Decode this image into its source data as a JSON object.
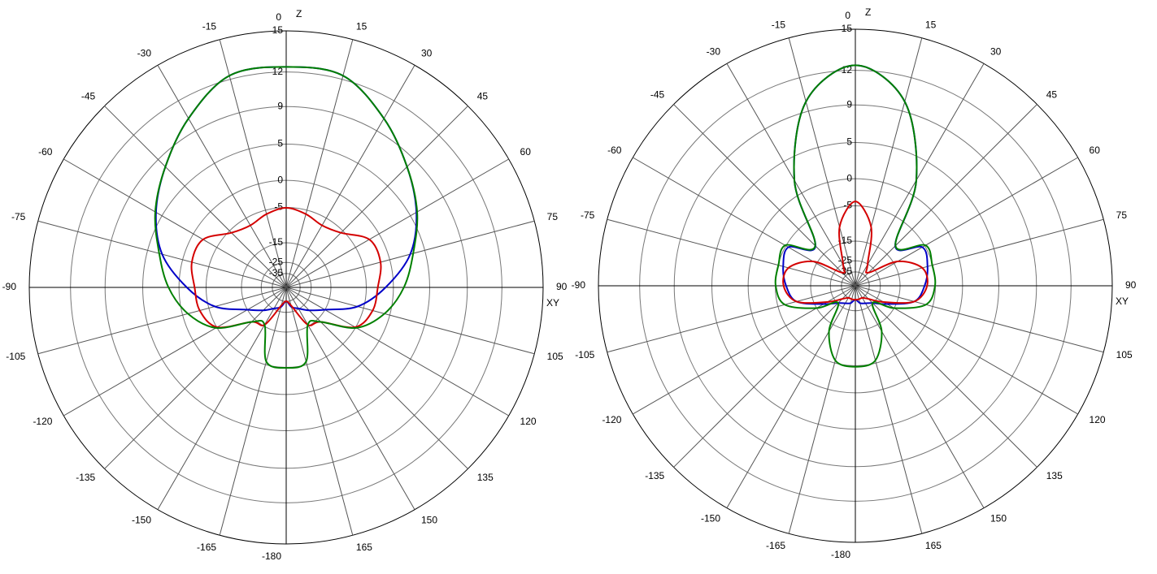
{
  "chart_data": [
    {
      "type": "polar",
      "radial_scale": "arrl",
      "z_label": "Z",
      "xy_label": "XY",
      "theta": [
        0,
        15,
        30,
        45,
        60,
        75,
        90,
        105,
        120,
        135,
        150,
        165,
        180,
        195,
        210,
        225,
        240,
        255,
        270,
        285,
        300,
        315,
        330,
        345
      ],
      "rlim": [
        -35,
        15
      ],
      "rticks": [
        15,
        12,
        9,
        5,
        0,
        -5,
        -15,
        -25,
        -35
      ],
      "thetaticks": [
        0,
        15,
        30,
        45,
        60,
        75,
        90,
        105,
        120,
        135,
        150,
        165,
        -180,
        -165,
        -150,
        -135,
        -120,
        -105,
        -90,
        -75,
        -60,
        -45,
        -30,
        -15
      ],
      "series": [
        {
          "color": "#0000c8",
          "values": [
            12.4,
            12.3,
            10.3,
            8.0,
            5.8,
            3.1,
            -1.3,
            -6.4,
            -15,
            -20.5,
            -25.4,
            -28.6,
            -35,
            -28.6,
            -25.4,
            -20.5,
            -15,
            -6.4,
            -1.3,
            3.1,
            5.8,
            8.0,
            10.3,
            12.3
          ]
        },
        {
          "color": "#d40000",
          "values": [
            -5.1,
            -5.9,
            -6.9,
            -5.6,
            -1.9,
            -1.6,
            -2.7,
            -3.1,
            -5.1,
            -13.5,
            -15.6,
            -30,
            -35,
            -30,
            -15.6,
            -13.5,
            -5.1,
            -3.1,
            -2.7,
            -1.6,
            -1.9,
            -5.6,
            -6.9,
            -5.9
          ]
        },
        {
          "color": "#008000",
          "values": [
            12.4,
            12.3,
            10.3,
            8.0,
            5.9,
            3.5,
            1.6,
            -0.9,
            -4.8,
            -13.5,
            -15.6,
            -5.7,
            -4.9,
            -5.7,
            -15.6,
            -13.5,
            -4.8,
            -0.9,
            1.6,
            3.5,
            5.9,
            8.0,
            10.3,
            12.3
          ]
        }
      ]
    },
    {
      "type": "polar",
      "radial_scale": "arrl",
      "z_label": "Z",
      "xy_label": "XY",
      "theta": [
        0,
        15,
        30,
        45,
        60,
        75,
        90,
        105,
        120,
        135,
        150,
        165,
        180,
        195,
        210,
        225,
        240,
        255,
        270,
        285,
        300,
        315,
        330,
        345
      ],
      "rlim": [
        -35,
        15
      ],
      "rticks": [
        15,
        12,
        9,
        5,
        0,
        -5,
        -15,
        -25,
        -35
      ],
      "thetaticks": [
        0,
        15,
        30,
        45,
        60,
        75,
        90,
        105,
        120,
        135,
        150,
        165,
        -180,
        -165,
        -150,
        -135,
        -120,
        -105,
        -90,
        -75,
        -60,
        -45,
        -30,
        -15
      ],
      "series": [
        {
          "color": "#0000c8",
          "values": [
            12.4,
            9.9,
            2.2,
            -11,
            -5.6,
            -6.2,
            -7.5,
            -9.7,
            -18.5,
            -25.4,
            -28.6,
            -30.7,
            -35,
            -30.7,
            -28.6,
            -25.4,
            -18.5,
            -9.7,
            -7.5,
            -6.2,
            -5.6,
            -11,
            2.2,
            9.9
          ]
        },
        {
          "color": "#d40000",
          "values": [
            -4.1,
            -9.7,
            -25.4,
            -30,
            -13.5,
            -7.5,
            -6.9,
            -9.7,
            -20.5,
            -30,
            -35,
            -35,
            -35,
            -35,
            -35,
            -30,
            -20.5,
            -9.7,
            -6.9,
            -7.5,
            -13.5,
            -30,
            -25.4,
            -9.7
          ]
        },
        {
          "color": "#008000",
          "values": [
            12.4,
            9.9,
            2.2,
            -10.9,
            -4.8,
            -5.1,
            -5.1,
            -6.6,
            -15,
            -25.4,
            -12.2,
            -5.6,
            -4.8,
            -5.6,
            -12.2,
            -25.4,
            -15,
            -6.6,
            -5.1,
            -5.1,
            -4.8,
            -10.9,
            2.2,
            9.9
          ]
        }
      ]
    }
  ]
}
